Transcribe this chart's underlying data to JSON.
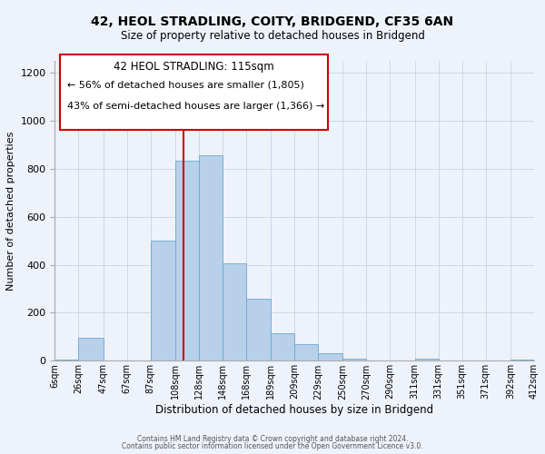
{
  "title": "42, HEOL STRADLING, COITY, BRIDGEND, CF35 6AN",
  "subtitle": "Size of property relative to detached houses in Bridgend",
  "xlabel": "Distribution of detached houses by size in Bridgend",
  "ylabel": "Number of detached properties",
  "bar_color": "#b8d0ea",
  "bar_edge_color": "#6aaad4",
  "background_color": "#eef2fa",
  "bin_labels": [
    "6sqm",
    "26sqm",
    "47sqm",
    "67sqm",
    "87sqm",
    "108sqm",
    "128sqm",
    "148sqm",
    "168sqm",
    "189sqm",
    "209sqm",
    "229sqm",
    "250sqm",
    "270sqm",
    "290sqm",
    "311sqm",
    "331sqm",
    "351sqm",
    "371sqm",
    "392sqm",
    "412sqm"
  ],
  "bin_edges": [
    6,
    26,
    47,
    67,
    87,
    108,
    128,
    148,
    168,
    189,
    209,
    229,
    250,
    270,
    290,
    311,
    331,
    351,
    371,
    392,
    412
  ],
  "bar_heights": [
    5,
    95,
    0,
    0,
    500,
    835,
    855,
    405,
    260,
    115,
    70,
    30,
    10,
    0,
    0,
    10,
    0,
    0,
    0,
    5,
    0
  ],
  "vline_x": 115,
  "vline_color": "#cc0000",
  "ylim": [
    0,
    1250
  ],
  "yticks": [
    0,
    200,
    400,
    600,
    800,
    1000,
    1200
  ],
  "annotation_title": "42 HEOL STRADLING: 115sqm",
  "annotation_line1": "← 56% of detached houses are smaller (1,805)",
  "annotation_line2": "43% of semi-detached houses are larger (1,366) →",
  "annotation_box_color": "#ffffff",
  "annotation_box_edge": "#cc0000",
  "footer1": "Contains HM Land Registry data © Crown copyright and database right 2024.",
  "footer2": "Contains public sector information licensed under the Open Government Licence v3.0."
}
